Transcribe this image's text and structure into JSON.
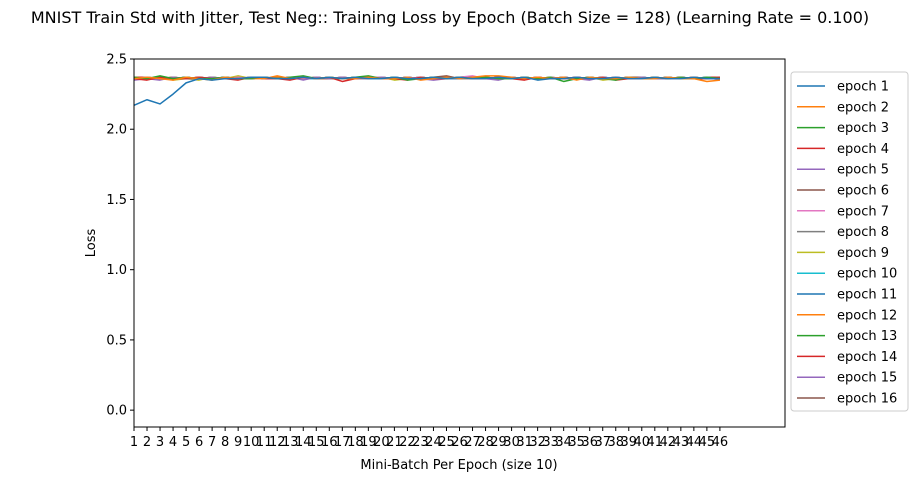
{
  "chart_data": {
    "type": "line",
    "title": "MNIST Train Std with Jitter, Test Neg:: Training Loss by Epoch (Batch Size = 128) (Learning Rate = 0.100)",
    "xlabel": "Mini-Batch Per Epoch (size 10)",
    "ylabel": "Loss",
    "xlim": [
      1,
      51
    ],
    "ylim": [
      -0.12,
      2.5
    ],
    "x_ticks": [
      1,
      2,
      3,
      4,
      5,
      6,
      7,
      8,
      9,
      10,
      11,
      12,
      13,
      14,
      15,
      16,
      17,
      18,
      19,
      20,
      21,
      22,
      23,
      24,
      25,
      26,
      27,
      28,
      29,
      30,
      31,
      32,
      33,
      34,
      35,
      36,
      37,
      38,
      39,
      40,
      41,
      42,
      43,
      44,
      45,
      46
    ],
    "y_ticks": [
      0.0,
      0.5,
      1.0,
      1.5,
      2.0,
      2.5
    ],
    "y_tick_labels": [
      "0.0",
      "0.5",
      "1.0",
      "1.5",
      "2.0",
      "2.5"
    ],
    "legend_position": "outside-right",
    "series": [
      {
        "name": "epoch 1",
        "color": "#1f77b4",
        "values": [
          2.17,
          2.21,
          2.18,
          2.25,
          2.33,
          2.36,
          2.35,
          2.36,
          2.36,
          2.37,
          2.37,
          2.36,
          2.36,
          2.37,
          2.36,
          2.37,
          2.36,
          2.37,
          2.36,
          2.36,
          2.37,
          2.36,
          2.36,
          2.37,
          2.36,
          2.37,
          2.36,
          2.36,
          2.37,
          2.36,
          2.37,
          2.35,
          2.36,
          2.36,
          2.37,
          2.36,
          2.36,
          2.37,
          2.36,
          2.36,
          2.37,
          2.36,
          2.36,
          2.37,
          2.36,
          2.36
        ]
      },
      {
        "name": "epoch 2",
        "color": "#ff7f0e",
        "values": [
          2.36,
          2.37,
          2.36,
          2.35,
          2.37,
          2.36,
          2.35,
          2.37,
          2.36,
          2.37,
          2.36,
          2.38,
          2.36,
          2.37,
          2.36,
          2.37,
          2.36,
          2.36,
          2.37,
          2.36,
          2.36,
          2.37,
          2.35,
          2.36,
          2.37,
          2.36,
          2.37,
          2.38,
          2.38,
          2.37,
          2.36,
          2.37,
          2.36,
          2.37,
          2.35,
          2.37,
          2.36,
          2.36,
          2.37,
          2.36,
          2.36,
          2.37,
          2.36,
          2.36,
          2.34,
          2.35
        ]
      },
      {
        "name": "epoch 3",
        "color": "#2ca02c",
        "values": [
          2.37,
          2.36,
          2.38,
          2.36,
          2.37,
          2.36,
          2.36,
          2.37,
          2.36,
          2.36,
          2.37,
          2.36,
          2.37,
          2.38,
          2.36,
          2.37,
          2.36,
          2.37,
          2.38,
          2.36,
          2.37,
          2.35,
          2.36,
          2.37,
          2.36,
          2.37,
          2.36,
          2.37,
          2.36,
          2.36,
          2.37,
          2.36,
          2.37,
          2.34,
          2.36,
          2.37,
          2.36,
          2.35,
          2.37,
          2.36,
          2.37,
          2.36,
          2.37,
          2.36,
          2.37,
          2.36
        ]
      },
      {
        "name": "epoch 4",
        "color": "#d62728",
        "values": [
          2.36,
          2.35,
          2.37,
          2.36,
          2.36,
          2.37,
          2.36,
          2.36,
          2.35,
          2.37,
          2.36,
          2.36,
          2.35,
          2.37,
          2.36,
          2.37,
          2.34,
          2.36,
          2.37,
          2.36,
          2.36,
          2.35,
          2.37,
          2.36,
          2.36,
          2.37,
          2.36,
          2.36,
          2.37,
          2.36,
          2.35,
          2.37,
          2.36,
          2.36,
          2.37,
          2.36,
          2.37,
          2.35,
          2.36,
          2.36,
          2.37,
          2.36,
          2.37,
          2.36,
          2.36,
          2.37
        ]
      },
      {
        "name": "epoch 5",
        "color": "#9467bd",
        "values": [
          2.35,
          2.36,
          2.35,
          2.37,
          2.36,
          2.36,
          2.37,
          2.36,
          2.36,
          2.37,
          2.36,
          2.36,
          2.37,
          2.35,
          2.37,
          2.36,
          2.37,
          2.36,
          2.36,
          2.37,
          2.36,
          2.37,
          2.36,
          2.35,
          2.36,
          2.37,
          2.36,
          2.36,
          2.35,
          2.37,
          2.36,
          2.36,
          2.37,
          2.36,
          2.36,
          2.35,
          2.37,
          2.36,
          2.36,
          2.37,
          2.36,
          2.36,
          2.37,
          2.36,
          2.37,
          2.35
        ]
      },
      {
        "name": "epoch 6",
        "color": "#8c564b",
        "values": [
          2.37,
          2.36,
          2.36,
          2.37,
          2.36,
          2.37,
          2.36,
          2.37,
          2.36,
          2.36,
          2.37,
          2.36,
          2.36,
          2.37,
          2.36,
          2.36,
          2.37,
          2.36,
          2.37,
          2.36,
          2.36,
          2.37,
          2.36,
          2.37,
          2.38,
          2.36,
          2.37,
          2.36,
          2.37,
          2.36,
          2.37,
          2.36,
          2.36,
          2.37,
          2.36,
          2.37,
          2.36,
          2.36,
          2.37,
          2.37,
          2.36,
          2.37,
          2.36,
          2.37,
          2.36,
          2.37
        ]
      },
      {
        "name": "epoch 7",
        "color": "#e377c2",
        "values": [
          2.36,
          2.37,
          2.36,
          2.37,
          2.36,
          2.37,
          2.36,
          2.36,
          2.37,
          2.36,
          2.37,
          2.36,
          2.37,
          2.36,
          2.37,
          2.36,
          2.37,
          2.36,
          2.37,
          2.37,
          2.36,
          2.36,
          2.37,
          2.36,
          2.36,
          2.37,
          2.38,
          2.36,
          2.37,
          2.36,
          2.37,
          2.36,
          2.36,
          2.37,
          2.36,
          2.37,
          2.36,
          2.37,
          2.36,
          2.36,
          2.37,
          2.36,
          2.36,
          2.37,
          2.36,
          2.36
        ]
      },
      {
        "name": "epoch 8",
        "color": "#7f7f7f",
        "values": [
          2.36,
          2.36,
          2.37,
          2.36,
          2.36,
          2.37,
          2.36,
          2.37,
          2.36,
          2.36,
          2.37,
          2.36,
          2.37,
          2.36,
          2.37,
          2.36,
          2.36,
          2.37,
          2.36,
          2.37,
          2.36,
          2.36,
          2.37,
          2.36,
          2.37,
          2.36,
          2.36,
          2.37,
          2.36,
          2.37,
          2.36,
          2.37,
          2.36,
          2.36,
          2.37,
          2.36,
          2.36,
          2.37,
          2.36,
          2.37,
          2.36,
          2.36,
          2.37,
          2.36,
          2.36,
          2.37
        ]
      },
      {
        "name": "epoch 9",
        "color": "#bcbd22",
        "values": [
          2.37,
          2.36,
          2.37,
          2.35,
          2.36,
          2.35,
          2.37,
          2.36,
          2.38,
          2.36,
          2.37,
          2.36,
          2.36,
          2.37,
          2.36,
          2.37,
          2.36,
          2.37,
          2.36,
          2.37,
          2.35,
          2.36,
          2.37,
          2.36,
          2.36,
          2.37,
          2.36,
          2.37,
          2.36,
          2.36,
          2.37,
          2.36,
          2.37,
          2.36,
          2.36,
          2.37,
          2.35,
          2.36,
          2.37,
          2.36,
          2.37,
          2.36,
          2.36,
          2.37,
          2.36,
          2.37
        ]
      },
      {
        "name": "epoch 10",
        "color": "#17becf",
        "values": [
          2.36,
          2.37,
          2.36,
          2.36,
          2.37,
          2.36,
          2.36,
          2.37,
          2.36,
          2.37,
          2.36,
          2.36,
          2.37,
          2.36,
          2.36,
          2.37,
          2.36,
          2.37,
          2.36,
          2.36,
          2.37,
          2.36,
          2.37,
          2.36,
          2.36,
          2.37,
          2.36,
          2.36,
          2.37,
          2.36,
          2.37,
          2.36,
          2.36,
          2.37,
          2.36,
          2.36,
          2.37,
          2.36,
          2.36,
          2.37,
          2.36,
          2.37,
          2.36,
          2.36,
          2.37,
          2.36
        ]
      },
      {
        "name": "epoch 11",
        "color": "#1f77b4",
        "values": [
          2.36,
          2.36,
          2.37,
          2.36,
          2.37,
          2.36,
          2.36,
          2.37,
          2.36,
          2.36,
          2.37,
          2.36,
          2.37,
          2.36,
          2.36,
          2.37,
          2.36,
          2.36,
          2.37,
          2.36,
          2.37,
          2.36,
          2.36,
          2.37,
          2.36,
          2.36,
          2.37,
          2.36,
          2.37,
          2.36,
          2.36,
          2.37,
          2.36,
          2.36,
          2.37,
          2.36,
          2.37,
          2.36,
          2.36,
          2.37,
          2.36,
          2.36,
          2.37,
          2.36,
          2.37,
          2.36
        ]
      },
      {
        "name": "epoch 12",
        "color": "#ff7f0e",
        "values": [
          2.37,
          2.36,
          2.36,
          2.37,
          2.36,
          2.37,
          2.36,
          2.36,
          2.37,
          2.36,
          2.36,
          2.37,
          2.36,
          2.37,
          2.36,
          2.36,
          2.37,
          2.36,
          2.36,
          2.37,
          2.36,
          2.37,
          2.36,
          2.36,
          2.37,
          2.36,
          2.36,
          2.37,
          2.36,
          2.37,
          2.36,
          2.36,
          2.37,
          2.36,
          2.36,
          2.37,
          2.36,
          2.37,
          2.36,
          2.36,
          2.37,
          2.36,
          2.36,
          2.37,
          2.36,
          2.36
        ]
      },
      {
        "name": "epoch 13",
        "color": "#2ca02c",
        "values": [
          2.36,
          2.37,
          2.36,
          2.37,
          2.36,
          2.36,
          2.37,
          2.36,
          2.36,
          2.37,
          2.36,
          2.37,
          2.36,
          2.36,
          2.37,
          2.36,
          2.36,
          2.37,
          2.36,
          2.37,
          2.36,
          2.36,
          2.37,
          2.36,
          2.36,
          2.37,
          2.36,
          2.37,
          2.36,
          2.36,
          2.37,
          2.36,
          2.36,
          2.37,
          2.36,
          2.37,
          2.36,
          2.36,
          2.37,
          2.36,
          2.36,
          2.37,
          2.36,
          2.37,
          2.36,
          2.36
        ]
      },
      {
        "name": "epoch 14",
        "color": "#d62728",
        "values": [
          2.37,
          2.37,
          2.36,
          2.36,
          2.37,
          2.36,
          2.37,
          2.36,
          2.36,
          2.37,
          2.36,
          2.36,
          2.37,
          2.36,
          2.37,
          2.36,
          2.36,
          2.37,
          2.36,
          2.36,
          2.37,
          2.36,
          2.37,
          2.36,
          2.36,
          2.37,
          2.36,
          2.36,
          2.37,
          2.36,
          2.37,
          2.36,
          2.36,
          2.37,
          2.36,
          2.36,
          2.37,
          2.36,
          2.37,
          2.36,
          2.36,
          2.37,
          2.36,
          2.36,
          2.37,
          2.37
        ]
      },
      {
        "name": "epoch 15",
        "color": "#9467bd",
        "values": [
          2.36,
          2.36,
          2.37,
          2.36,
          2.36,
          2.37,
          2.36,
          2.37,
          2.36,
          2.36,
          2.37,
          2.36,
          2.36,
          2.37,
          2.36,
          2.37,
          2.36,
          2.36,
          2.37,
          2.36,
          2.36,
          2.37,
          2.36,
          2.37,
          2.36,
          2.36,
          2.37,
          2.36,
          2.36,
          2.37,
          2.36,
          2.37,
          2.36,
          2.36,
          2.37,
          2.36,
          2.36,
          2.37,
          2.36,
          2.37,
          2.36,
          2.36,
          2.37,
          2.36,
          2.36,
          2.37
        ]
      },
      {
        "name": "epoch 16",
        "color": "#8c564b",
        "values": [
          2.37,
          2.36,
          2.37,
          2.36,
          2.37,
          2.36,
          2.36,
          2.37,
          2.36,
          2.37,
          2.36,
          2.36,
          2.37,
          2.36,
          2.37,
          2.36,
          2.37,
          2.36,
          2.36,
          2.37,
          2.36,
          2.37,
          2.36,
          2.36,
          2.37,
          2.36,
          2.37,
          2.36,
          2.37,
          2.36,
          2.36,
          2.37,
          2.36,
          2.37,
          2.36,
          2.36,
          2.37,
          2.36,
          2.37,
          2.36,
          2.36,
          2.37,
          2.36,
          2.37,
          2.36,
          2.36
        ]
      }
    ]
  }
}
